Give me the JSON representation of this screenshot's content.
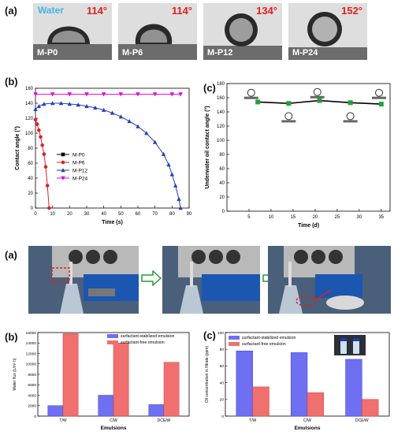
{
  "fig1": {
    "panel_a_label": "(a)",
    "water_label": "Water",
    "drops": [
      {
        "name": "M-P0",
        "angle": "114°",
        "contact": 114
      },
      {
        "name": "M-P6",
        "angle": "114°",
        "contact": 114
      },
      {
        "name": "M-P12",
        "angle": "134°",
        "contact": 134
      },
      {
        "name": "M-P24",
        "angle": "152°",
        "contact": 152
      }
    ],
    "panel_b_label": "(b)",
    "panel_c_label": "(c)"
  },
  "fig2": {
    "panel_a_label": "(a)",
    "panel_b_label": "(b)",
    "panel_c_label": "(c)"
  },
  "chart_data": [
    {
      "id": "contact-angle-vs-time",
      "type": "line",
      "xlabel": "Time (s)",
      "ylabel": "Contact angle (°)",
      "xlim": [
        0,
        90
      ],
      "ylim": [
        0,
        160
      ],
      "xticks": [
        "0",
        "10",
        "20",
        "30",
        "40",
        "50",
        "60",
        "70",
        "80",
        "90"
      ],
      "yticks": [
        "0",
        "20",
        "40",
        "60",
        "80",
        "100",
        "120",
        "140",
        "160"
      ],
      "legend_position": "center-left",
      "series": [
        {
          "name": "M-P0",
          "color": "#000000",
          "marker": "square",
          "x": [],
          "y": []
        },
        {
          "name": "M-P6",
          "color": "#d8232a",
          "marker": "circle",
          "x": [
            0,
            1,
            2,
            3,
            4,
            5,
            6,
            7,
            8
          ],
          "y": [
            118,
            112,
            104,
            95,
            84,
            72,
            55,
            30,
            0
          ]
        },
        {
          "name": "M-P12",
          "color": "#1f3fb8",
          "marker": "triangle",
          "x": [
            0,
            2,
            5,
            10,
            15,
            20,
            25,
            30,
            35,
            40,
            45,
            50,
            55,
            60,
            65,
            70,
            75,
            78,
            80,
            82,
            84,
            85
          ],
          "y": [
            132,
            136,
            139,
            140,
            140,
            139,
            138,
            136,
            134,
            131,
            127,
            122,
            116,
            109,
            100,
            88,
            72,
            58,
            45,
            30,
            12,
            0
          ]
        },
        {
          "name": "M-P24",
          "color": "#e000e0",
          "marker": "triangle-down",
          "x": [
            0,
            10,
            20,
            30,
            40,
            50,
            60,
            70,
            80,
            85
          ],
          "y": [
            152,
            152,
            152,
            152,
            152,
            152,
            152,
            152,
            152,
            152
          ]
        }
      ]
    },
    {
      "id": "underwater-oil-contact-angle",
      "type": "line",
      "xlabel": "Time (d)",
      "ylabel": "Underwater oil contact angle (°)",
      "xlim": [
        0,
        37
      ],
      "ylim": [
        0,
        180
      ],
      "xticks": [
        "5",
        "10",
        "15",
        "20",
        "25",
        "30",
        "35"
      ],
      "yticks": [
        "0",
        "20",
        "40",
        "60",
        "80",
        "100",
        "120",
        "140",
        "160",
        "180"
      ],
      "series": [
        {
          "name": "",
          "color": "#000000",
          "marker": "square-green",
          "x": [
            7,
            14,
            21,
            28,
            35
          ],
          "y": [
            154,
            152,
            156,
            153,
            151
          ]
        }
      ]
    },
    {
      "id": "water-flux",
      "type": "bar",
      "xlabel": "Emulsions",
      "ylabel": "Water flux (L/m² h)",
      "categories": [
        "T/W",
        "C/W",
        "DCE/W"
      ],
      "ylim": [
        0,
        16000
      ],
      "yticks": [
        "0",
        "2000",
        "4000",
        "6000",
        "8000",
        "10000",
        "12000",
        "14000",
        "16000"
      ],
      "legend_position": "top-right",
      "series": [
        {
          "name": "surfactant-stabilized emulsion",
          "color": "#6f6ff2",
          "values": [
            2000,
            4000,
            2200
          ]
        },
        {
          "name": "surfactant-free emulsion",
          "color": "#f07070",
          "values": [
            15800,
            14000,
            10300
          ]
        }
      ]
    },
    {
      "id": "oil-concentration",
      "type": "bar",
      "xlabel": "Emulsions",
      "ylabel": "Oil concentration in filtrate (ppm)",
      "categories": [
        "T/W",
        "C/W",
        "DCE/W"
      ],
      "ylim": [
        0,
        100
      ],
      "yticks": [
        "0",
        "20",
        "40",
        "60",
        "80",
        "100"
      ],
      "legend_position": "top-left",
      "series": [
        {
          "name": "surfactant-stabilized emulsion",
          "color": "#6f6ff2",
          "values": [
            78,
            76,
            68
          ]
        },
        {
          "name": "surfactant-free emulsion",
          "color": "#f07070",
          "values": [
            35,
            28,
            20
          ]
        }
      ]
    }
  ]
}
